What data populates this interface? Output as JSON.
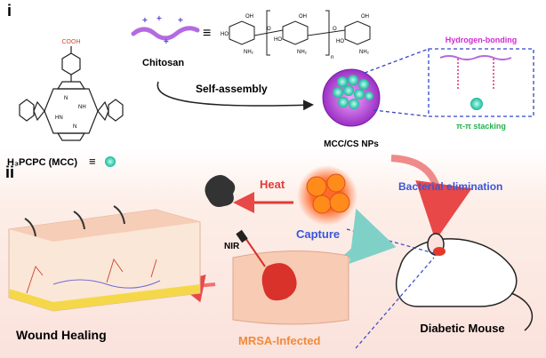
{
  "section_labels": [
    "i",
    "ii"
  ],
  "porphyrin": {
    "substituent": "COOH",
    "name": "H₃PCPC (MCC)",
    "ring_labels": [
      "N",
      "NH",
      "HN",
      "N"
    ]
  },
  "chitosan": {
    "name": "Chitosan",
    "structure_labels": [
      "OH",
      "HO",
      "NH₂",
      "O",
      "OH",
      "HO",
      "NH₂",
      "O",
      "OH",
      "HO",
      "NH₂",
      "n"
    ]
  },
  "arrows": {
    "self_assembly": "Self-assembly",
    "heat": "Heat",
    "capture": "Capture",
    "bacterial_elimination": "Bacterial elimination"
  },
  "nanoparticle": {
    "name": "MCC/CS NPs",
    "interactions": [
      "Hydrogen-bonding",
      "π-π stacking"
    ]
  },
  "labels": {
    "nir": "NIR",
    "wound": "Wound Healing",
    "infected": "MRSA-Infected",
    "mouse": "Diabetic Mouse"
  }
}
